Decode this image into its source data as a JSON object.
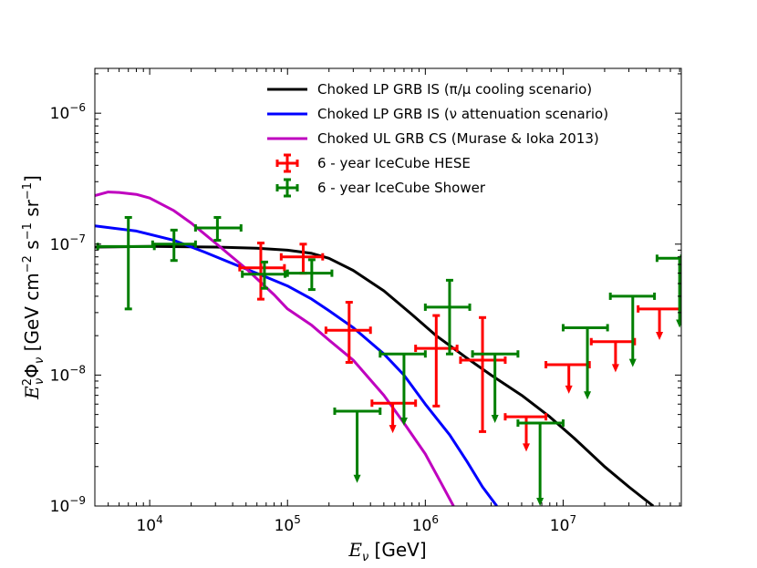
{
  "chart_data": {
    "type": "line",
    "title": "",
    "xlabel": "E_ν [GeV]",
    "ylabel": "E_ν² Φ_ν [GeV cm⁻² s⁻¹ sr⁻¹]",
    "xscale": "log",
    "yscale": "log",
    "xlim": [
      4000,
      72000000
    ],
    "ylim": [
      1e-09,
      2.2e-06
    ],
    "x_ticks": [
      {
        "value": 10000,
        "base": "10",
        "exp": "4"
      },
      {
        "value": 100000,
        "base": "10",
        "exp": "5"
      },
      {
        "value": 1000000,
        "base": "10",
        "exp": "6"
      },
      {
        "value": 10000000,
        "base": "10",
        "exp": "7"
      }
    ],
    "y_ticks": [
      {
        "value": 1e-09,
        "base": "10",
        "exp": "-9"
      },
      {
        "value": 1e-08,
        "base": "10",
        "exp": "-8"
      },
      {
        "value": 1e-07,
        "base": "10",
        "exp": "-7"
      },
      {
        "value": 1e-06,
        "base": "10",
        "exp": "-6"
      }
    ],
    "legend_position": "top-right",
    "series": [
      {
        "name": "Choked LP GRB IS (π/μ cooling scenario)",
        "kind": "line",
        "color": "#000000",
        "points": [
          [
            4000,
            9.5e-08
          ],
          [
            10000,
            9.6e-08
          ],
          [
            30000,
            9.5e-08
          ],
          [
            60000,
            9.3e-08
          ],
          [
            100000,
            9e-08
          ],
          [
            150000,
            8.5e-08
          ],
          [
            200000,
            7.8e-08
          ],
          [
            300000,
            6.3e-08
          ],
          [
            500000,
            4.4e-08
          ],
          [
            800000,
            2.9e-08
          ],
          [
            1200000,
            2e-08
          ],
          [
            2000000,
            1.35e-08
          ],
          [
            3000000,
            1e-08
          ],
          [
            5000000,
            7e-09
          ],
          [
            8000000,
            4.8e-09
          ],
          [
            12000000,
            3.3e-09
          ],
          [
            20000000,
            2e-09
          ],
          [
            30000000,
            1.4e-09
          ],
          [
            45000000,
            1e-09
          ]
        ]
      },
      {
        "name": "Choked LP GRB IS (ν attenuation scenario)",
        "kind": "line",
        "color": "#0000ff",
        "points": [
          [
            4000,
            1.38e-07
          ],
          [
            8000,
            1.26e-07
          ],
          [
            15000,
            1.07e-07
          ],
          [
            25000,
            8.7e-08
          ],
          [
            40000,
            7.1e-08
          ],
          [
            70000,
            5.6e-08
          ],
          [
            100000,
            4.8e-08
          ],
          [
            150000,
            3.8e-08
          ],
          [
            200000,
            3.1e-08
          ],
          [
            300000,
            2.3e-08
          ],
          [
            500000,
            1.45e-08
          ],
          [
            700000,
            1e-08
          ],
          [
            1000000,
            6e-09
          ],
          [
            1500000,
            3.5e-09
          ],
          [
            2000000,
            2.2e-09
          ],
          [
            2600000,
            1.4e-09
          ],
          [
            3300000,
            1e-09
          ]
        ]
      },
      {
        "name": "Choked UL GRB CS (Murase & Ioka 2013)",
        "kind": "line",
        "color": "#bf00bf",
        "points": [
          [
            4000,
            2.35e-07
          ],
          [
            5000,
            2.5e-07
          ],
          [
            6000,
            2.48e-07
          ],
          [
            8000,
            2.4e-07
          ],
          [
            10000,
            2.25e-07
          ],
          [
            15000,
            1.8e-07
          ],
          [
            20000,
            1.45e-07
          ],
          [
            30000,
            1.02e-07
          ],
          [
            50000,
            6.5e-08
          ],
          [
            80000,
            4.1e-08
          ],
          [
            100000,
            3.2e-08
          ],
          [
            150000,
            2.4e-08
          ],
          [
            200000,
            1.85e-08
          ],
          [
            300000,
            1.3e-08
          ],
          [
            500000,
            7e-09
          ],
          [
            700000,
            4.3e-09
          ],
          [
            1000000,
            2.5e-09
          ],
          [
            1300000,
            1.5e-09
          ],
          [
            1600000,
            1e-09
          ]
        ]
      },
      {
        "name": "6 - year IceCube HESE",
        "kind": "errorbar",
        "color": "#ff0000",
        "points": [
          {
            "x": 64000,
            "y": 6.6e-08,
            "xlo": 45000,
            "xhi": 95000,
            "ylo": 3.8e-08,
            "yhi": 1.02e-07
          },
          {
            "x": 130000,
            "y": 8e-08,
            "xlo": 90000,
            "xhi": 180000,
            "ylo": 6e-08,
            "yhi": 1e-07
          },
          {
            "x": 280000,
            "y": 2.2e-08,
            "xlo": 190000,
            "xhi": 400000,
            "ylo": 1.25e-08,
            "yhi": 3.6e-08
          },
          {
            "x": 580000,
            "y": 6.1e-09,
            "xlo": 410000,
            "xhi": 850000,
            "ylo": 3.6e-09,
            "yhi": null
          },
          {
            "x": 1200000,
            "y": 1.6e-08,
            "xlo": 850000,
            "xhi": 1700000,
            "ylo": 5.8e-09,
            "yhi": 2.85e-08
          },
          {
            "x": 2600000,
            "y": 1.3e-08,
            "xlo": 1800000,
            "xhi": 3800000,
            "ylo": 3.7e-09,
            "yhi": 2.75e-08
          },
          {
            "x": 5400000,
            "y": 4.8e-09,
            "xlo": 3800000,
            "xhi": 7500000,
            "ylo": 2.6e-09,
            "yhi": null
          },
          {
            "x": 11000000,
            "y": 1.2e-08,
            "xlo": 7500000,
            "xhi": 15500000,
            "ylo": 7.2e-09,
            "yhi": null
          },
          {
            "x": 24000000,
            "y": 1.8e-08,
            "xlo": 16000000,
            "xhi": 33000000,
            "ylo": 1.05e-08,
            "yhi": null
          },
          {
            "x": 50000000,
            "y": 3.2e-08,
            "xlo": 35000000,
            "xhi": 72000000,
            "ylo": 1.85e-08,
            "yhi": null
          }
        ]
      },
      {
        "name": "6 - year IceCube Shower",
        "kind": "errorbar",
        "color": "#007f00",
        "points": [
          {
            "x": 7000,
            "y": 9.6e-08,
            "xlo": 4200,
            "xhi": 10800,
            "ylo": 3.2e-08,
            "yhi": 1.6e-07
          },
          {
            "x": 15000,
            "y": 1e-07,
            "xlo": 10500,
            "xhi": 21500,
            "ylo": 7.5e-08,
            "yhi": 1.28e-07
          },
          {
            "x": 31000,
            "y": 1.33e-07,
            "xlo": 21500,
            "xhi": 46000,
            "ylo": 1.07e-07,
            "yhi": 1.6e-07
          },
          {
            "x": 68000,
            "y": 5.9e-08,
            "xlo": 47000,
            "xhi": 96000,
            "ylo": 4.6e-08,
            "yhi": 7.3e-08
          },
          {
            "x": 150000,
            "y": 6e-08,
            "xlo": 100000,
            "xhi": 210000,
            "ylo": 4.5e-08,
            "yhi": 7.6e-08
          },
          {
            "x": 320000,
            "y": 5.3e-09,
            "xlo": 220000,
            "xhi": 470000,
            "ylo": 1.5e-09,
            "yhi": null
          },
          {
            "x": 700000,
            "y": 1.45e-08,
            "xlo": 470000,
            "xhi": 1000000,
            "ylo": 4.1e-09,
            "yhi": null
          },
          {
            "x": 1500000,
            "y": 3.3e-08,
            "xlo": 1000000,
            "xhi": 2100000,
            "ylo": 1.45e-08,
            "yhi": 5.3e-08
          },
          {
            "x": 3200000,
            "y": 1.45e-08,
            "xlo": 2200000,
            "xhi": 4700000,
            "ylo": 4.3e-09,
            "yhi": null
          },
          {
            "x": 6800000,
            "y": 4.3e-09,
            "xlo": 4700000,
            "xhi": 10000000,
            "ylo": 1e-09,
            "yhi": null
          },
          {
            "x": 15000000,
            "y": 2.3e-08,
            "xlo": 10000000,
            "xhi": 21000000,
            "ylo": 6.5e-09,
            "yhi": null
          },
          {
            "x": 32000000,
            "y": 4e-08,
            "xlo": 22000000,
            "xhi": 46000000,
            "ylo": 1.15e-08,
            "yhi": null
          },
          {
            "x": 70000000,
            "y": 7.8e-08,
            "xlo": 48000000,
            "xhi": 72000000,
            "ylo": 2.3e-08,
            "yhi": null
          }
        ]
      }
    ]
  }
}
